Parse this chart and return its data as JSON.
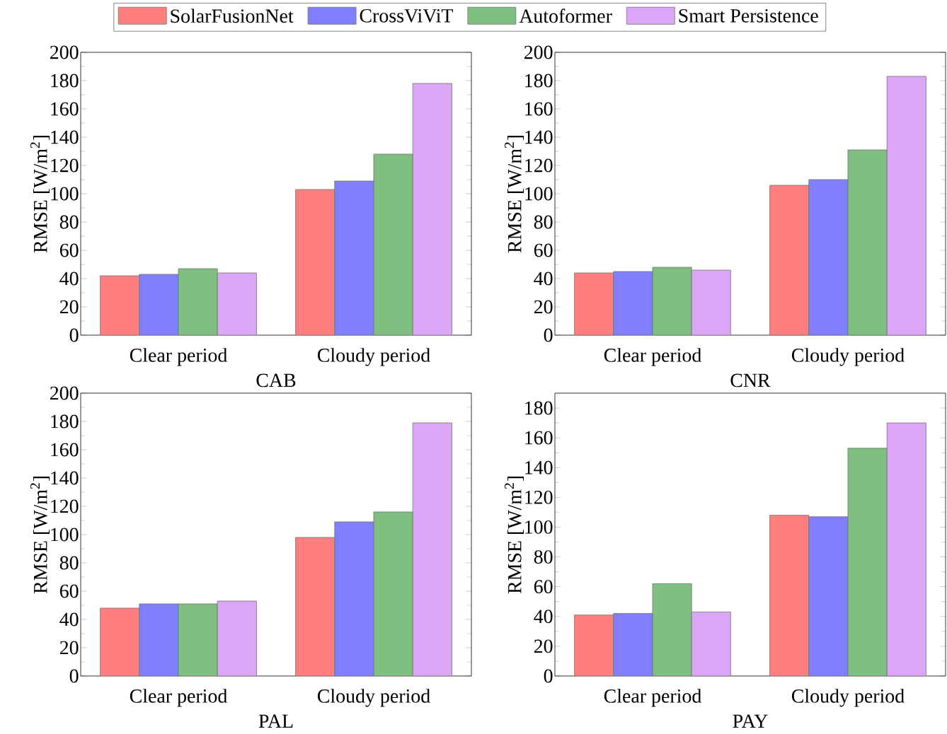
{
  "chart_data": [
    {
      "type": "bar",
      "xlabel": "CAB",
      "ylabel": "RMSE [W/m$^{2}$]",
      "categories": [
        "Clear period",
        "Cloudy period"
      ],
      "ylim": [
        0,
        200
      ],
      "yticks": [
        0,
        20,
        40,
        60,
        80,
        100,
        120,
        140,
        160,
        180,
        200
      ],
      "legend": "top",
      "series": [
        {
          "name": "SolarFusionNet",
          "color": "#ff7f7f",
          "values": [
            42,
            103
          ]
        },
        {
          "name": "CrossViViT",
          "color": "#7f7fff",
          "values": [
            43,
            109
          ]
        },
        {
          "name": "Autoformer",
          "color": "#7fbf7f",
          "values": [
            47,
            128
          ]
        },
        {
          "name": "Smart Persistence",
          "color": "#dba6f5",
          "values": [
            44,
            178
          ]
        }
      ]
    },
    {
      "type": "bar",
      "xlabel": "CNR",
      "ylabel": "RMSE [W/m$^{2}$]",
      "categories": [
        "Clear period",
        "Cloudy period"
      ],
      "ylim": [
        0,
        200
      ],
      "yticks": [
        0,
        20,
        40,
        60,
        80,
        100,
        120,
        140,
        160,
        180,
        200
      ],
      "series": [
        {
          "color": "#ff7f7f",
          "values": [
            44,
            106
          ]
        },
        {
          "color": "#7f7fff",
          "values": [
            45,
            110
          ]
        },
        {
          "color": "#7fbf7f",
          "values": [
            48,
            131
          ]
        },
        {
          "color": "#dba6f5",
          "values": [
            46,
            183
          ]
        }
      ]
    },
    {
      "type": "bar",
      "xlabel": "PAL",
      "ylabel": "RMSE [W/m$^{2}$]",
      "categories": [
        "Clear period",
        "Cloudy period"
      ],
      "ylim": [
        0,
        200
      ],
      "yticks": [
        0,
        20,
        40,
        60,
        80,
        100,
        120,
        140,
        160,
        180,
        200
      ],
      "series": [
        {
          "color": "#ff7f7f",
          "values": [
            48,
            98
          ]
        },
        {
          "color": "#7f7fff",
          "values": [
            51,
            109
          ]
        },
        {
          "color": "#7fbf7f",
          "values": [
            51,
            116
          ]
        },
        {
          "color": "#dba6f5",
          "values": [
            53,
            179
          ]
        }
      ]
    },
    {
      "type": "bar",
      "xlabel": "PAY",
      "ylabel": "RMSE [W/m$^{2}$]",
      "categories": [
        "Clear period",
        "Cloudy period"
      ],
      "ylim": [
        0,
        190
      ],
      "yticks": [
        0,
        20,
        40,
        60,
        80,
        100,
        120,
        140,
        160,
        180
      ],
      "series": [
        {
          "color": "#ff7f7f",
          "values": [
            41,
            108
          ]
        },
        {
          "color": "#7f7fff",
          "values": [
            42,
            107
          ]
        },
        {
          "color": "#7fbf7f",
          "values": [
            62,
            153
          ]
        },
        {
          "color": "#dba6f5",
          "values": [
            43,
            170
          ]
        }
      ]
    }
  ]
}
